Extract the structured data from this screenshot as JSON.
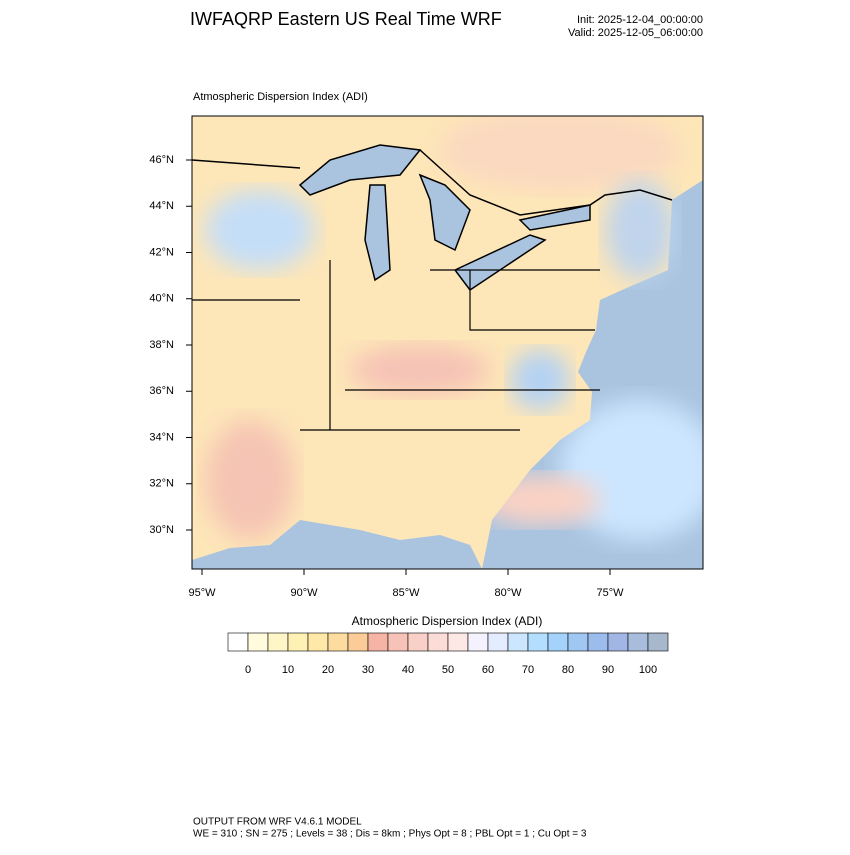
{
  "header": {
    "title": "IWFAQRP Eastern US Real Time WRF",
    "init": "Init: 2025-12-04_00:00:00",
    "valid": "Valid: 2025-12-05_06:00:00"
  },
  "map": {
    "field_label": "Atmospheric Dispersion Index   (ADI)",
    "lat_ticks": [
      {
        "value": 46,
        "label": "46°N"
      },
      {
        "value": 44,
        "label": "44°N"
      },
      {
        "value": 42,
        "label": "42°N"
      },
      {
        "value": 40,
        "label": "40°N"
      },
      {
        "value": 38,
        "label": "38°N"
      },
      {
        "value": 36,
        "label": "36°N"
      },
      {
        "value": 34,
        "label": "34°N"
      },
      {
        "value": 32,
        "label": "32°N"
      },
      {
        "value": 30,
        "label": "30°N"
      }
    ],
    "lon_ticks": [
      {
        "value": -95,
        "label": "95°W"
      },
      {
        "value": -90,
        "label": "90°W"
      },
      {
        "value": -85,
        "label": "85°W"
      },
      {
        "value": -80,
        "label": "80°W"
      },
      {
        "value": -75,
        "label": "75°W"
      }
    ]
  },
  "colorbar": {
    "title": "Atmospheric Dispersion Index  (ADI)",
    "colors": [
      "#ffffff",
      "#fffbdc",
      "#fff6c8",
      "#fff0b4",
      "#ffe8a8",
      "#fddca0",
      "#fbcc98",
      "#f6b4a4",
      "#f7c2b8",
      "#f9d0c8",
      "#fbdcd6",
      "#fde8e6",
      "#f4f2ff",
      "#e4ecff",
      "#cde6ff",
      "#b4deff",
      "#a4d2fa",
      "#a0c6f2",
      "#9cbcee",
      "#a2b6e6",
      "#a8bcdc",
      "#a8b8cc"
    ],
    "ticks": [
      0,
      10,
      20,
      30,
      40,
      50,
      60,
      70,
      80,
      90,
      100
    ]
  },
  "footer": {
    "line1": "OUTPUT FROM WRF V4.6.1 MODEL",
    "line2": "WE = 310 ; SN = 275 ; Levels = 38 ; Dis = 8km ; Phys Opt = 8 ; PBL Opt = 1 ; Cu Opt = 3"
  }
}
